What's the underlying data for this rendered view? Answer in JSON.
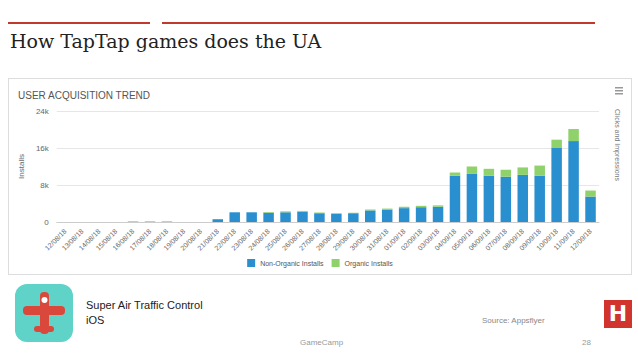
{
  "slide": {
    "title": "How TapTap games does the UA",
    "app_name": "Super Air Traffic Control",
    "platform": "iOS",
    "source": "Source: Appsflyer",
    "footer": "GameCamp",
    "page": "28",
    "logo": "H"
  },
  "chart_data": {
    "type": "bar",
    "title": "USER ACQUISITION TREND",
    "y_label": "Installs",
    "annotations": [
      "Clicks and Impressions"
    ],
    "categories": [
      "12/08/18",
      "13/08/18",
      "14/08/18",
      "15/08/18",
      "16/08/18",
      "17/08/18",
      "18/08/18",
      "19/08/18",
      "20/08/18",
      "21/08/18",
      "22/08/18",
      "23/08/18",
      "24/08/18",
      "25/08/18",
      "26/08/18",
      "27/08/18",
      "28/08/18",
      "29/08/18",
      "30/08/18",
      "31/08/18",
      "01/09/18",
      "02/09/18",
      "03/09/18",
      "04/09/18",
      "05/09/18",
      "06/09/18",
      "07/09/18",
      "08/09/18",
      "09/09/18",
      "10/09/18",
      "11/09/18",
      "12/09/18"
    ],
    "series": [
      {
        "name": "Non-Organic Installs",
        "color": "#2a8fcf",
        "values": [
          0,
          0,
          0,
          0,
          0,
          0,
          0,
          0,
          0,
          600,
          2100,
          2100,
          2000,
          2100,
          2200,
          1900,
          1800,
          1900,
          2500,
          2700,
          3000,
          3200,
          3300,
          10000,
          10400,
          10000,
          9800,
          10200,
          10000,
          16000,
          17500,
          5500
        ]
      },
      {
        "name": "Organic Installs",
        "color": "#8fd16a",
        "values": [
          0,
          0,
          0,
          0,
          150,
          150,
          150,
          0,
          0,
          0,
          0,
          0,
          150,
          200,
          200,
          150,
          100,
          100,
          200,
          200,
          300,
          300,
          300,
          700,
          1600,
          1500,
          1500,
          1600,
          2200,
          1800,
          2600,
          1300
        ]
      }
    ],
    "stacked": true,
    "legend": "bottom",
    "grid": true,
    "ylim": [
      0,
      24000
    ],
    "yticks": [
      0,
      {
        "value": 8000,
        "label": "8k"
      },
      {
        "value": 16000,
        "label": "16k"
      },
      {
        "value": 24000,
        "label": "24k"
      }
    ]
  }
}
